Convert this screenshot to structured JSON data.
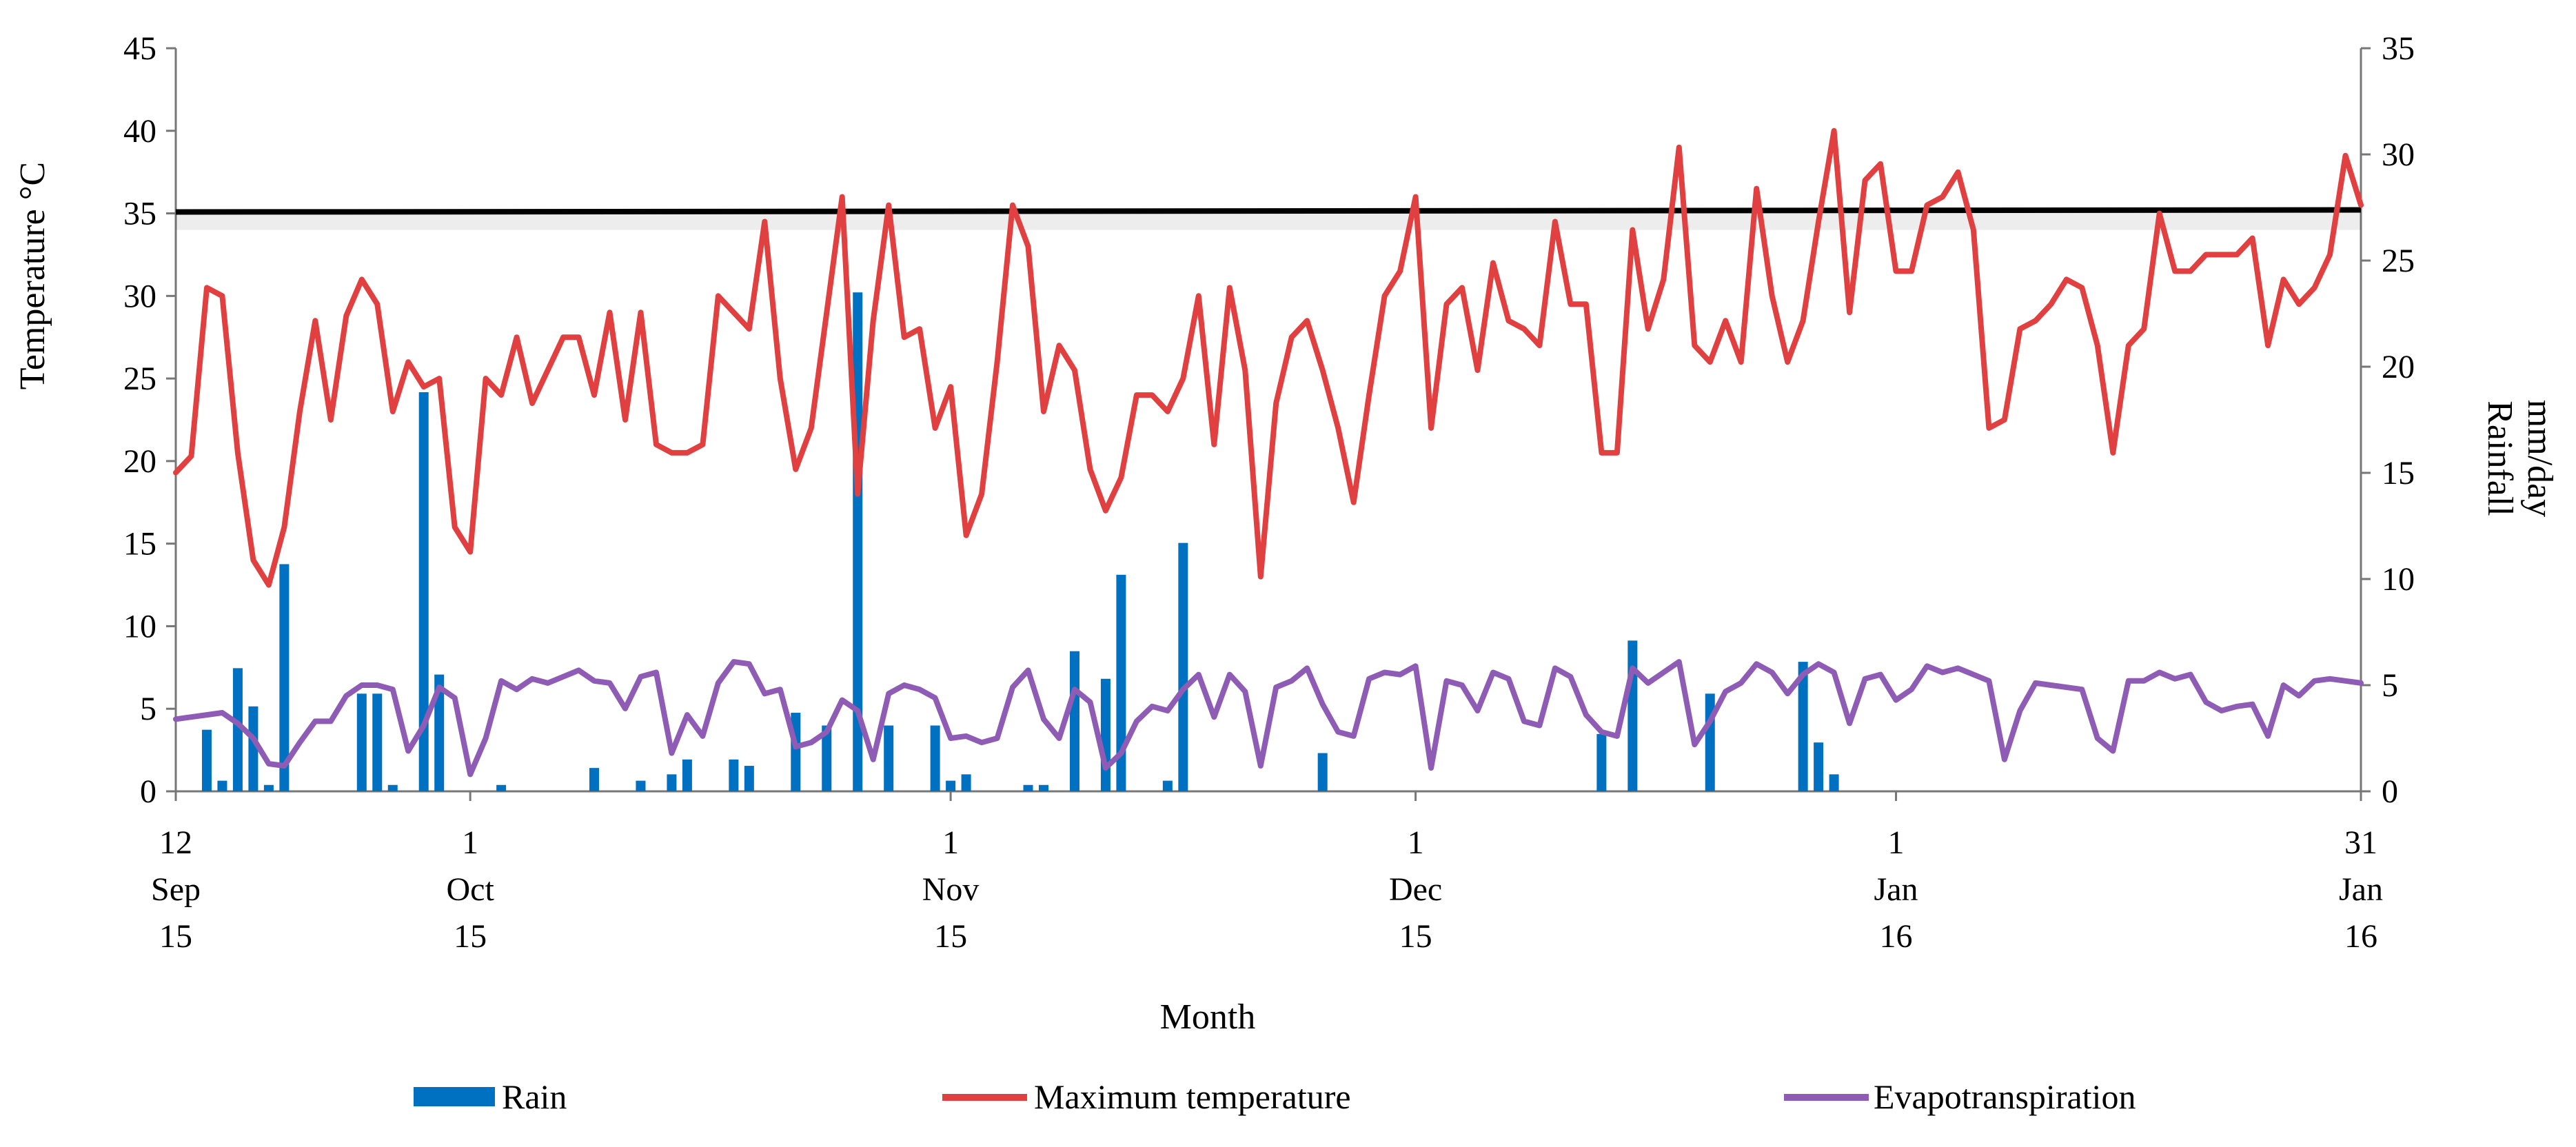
{
  "chart_data": {
    "type": "bar+line",
    "title": "",
    "xlabel": "Month",
    "ylabel_left": "Temperature °C",
    "ylabel_right": [
      "Rainfall",
      "mm/day"
    ],
    "ylim_left": [
      0,
      45
    ],
    "yticks_left": [
      0,
      5,
      10,
      15,
      20,
      25,
      30,
      35,
      40,
      45
    ],
    "ylim_right": [
      0,
      35
    ],
    "yticks_right": [
      0,
      5,
      10,
      15,
      20,
      25,
      30,
      35
    ],
    "x_start_day": 0,
    "x_end_day": 141,
    "x_ticks": [
      {
        "day": 0,
        "lines": [
          "12",
          "Sep",
          "15"
        ]
      },
      {
        "day": 19,
        "lines": [
          "1",
          "Oct",
          "15"
        ]
      },
      {
        "day": 50,
        "lines": [
          "1",
          "Nov",
          "15"
        ]
      },
      {
        "day": 80,
        "lines": [
          "1",
          "Dec",
          "15"
        ]
      },
      {
        "day": 111,
        "lines": [
          "1",
          "Jan",
          "16"
        ]
      },
      {
        "day": 141,
        "lines": [
          "31",
          "Jan",
          "16"
        ]
      }
    ],
    "threshold": {
      "value": 35,
      "color": "#000000"
    },
    "legend": {
      "position": "bottom",
      "entries": [
        {
          "label": "Rain",
          "color": "#0070C0",
          "kind": "bar"
        },
        {
          "label": "Maximum temperature",
          "color": "#E0403F",
          "kind": "line"
        },
        {
          "label": "Evapotranspiration",
          "color": "#8E5CB5",
          "kind": "line"
        }
      ]
    },
    "series": [
      {
        "name": "Maximum temperature",
        "axis": "left",
        "type": "line",
        "color": "#E0403F",
        "values": [
          19.3,
          20.3,
          30.5,
          30,
          20.5,
          14,
          12.5,
          16,
          23,
          28.5,
          22.5,
          28.8,
          31,
          29.5,
          23,
          26,
          24.5,
          25,
          16,
          14.5,
          25,
          24,
          27.5,
          23.5,
          25.5,
          27.5,
          27.5,
          24,
          29,
          22.5,
          29,
          21,
          20.5,
          20.5,
          21,
          30,
          29,
          28,
          34.5,
          25,
          19.5,
          22,
          29,
          36,
          18,
          28.5,
          35.5,
          27.5,
          28,
          22,
          24.5,
          15.5,
          18,
          26,
          35.5,
          33,
          23,
          27,
          25.5,
          19.5,
          17,
          19,
          24,
          24,
          23,
          25,
          30,
          21,
          30.5,
          25.5,
          13,
          23.5,
          27.5,
          28.5,
          25.5,
          22,
          17.5,
          24,
          30,
          31.5,
          36,
          22,
          29.5,
          30.5,
          25.5,
          32,
          28.5,
          28,
          27,
          34.5,
          29.5,
          29.5,
          20.5,
          20.5,
          34,
          28,
          31,
          39,
          27,
          26,
          28.5,
          26,
          36.5,
          30,
          26,
          28.5,
          34.5,
          40,
          29,
          37,
          38,
          31.5,
          31.5,
          35.5,
          36,
          37.5,
          34,
          22,
          22.5,
          28,
          28.5,
          29.5,
          31,
          30.5,
          27,
          20.5,
          27,
          28,
          35,
          31.5,
          31.5,
          32.5,
          32.5,
          32.5,
          33.5,
          27,
          31,
          29.5,
          30.5,
          32.5,
          38.5,
          35.5
        ]
      },
      {
        "name": "Evapotranspiration",
        "axis": "right",
        "type": "line",
        "color": "#8E5CB5",
        "values": [
          3.4,
          3.5,
          3.6,
          3.7,
          3.2,
          2.5,
          1.3,
          1.2,
          2.3,
          3.3,
          3.3,
          4.5,
          5,
          5,
          4.8,
          1.9,
          3.1,
          4.9,
          4.4,
          0.8,
          2.5,
          5.2,
          4.8,
          5.3,
          5.1,
          5.4,
          5.7,
          5.2,
          5.1,
          3.9,
          5.4,
          5.6,
          1.8,
          3.6,
          2.6,
          5.1,
          6.1,
          6,
          4.6,
          4.8,
          2.1,
          2.3,
          2.8,
          4.3,
          3.8,
          1.5,
          4.6,
          5,
          4.8,
          4.4,
          2.5,
          2.6,
          2.3,
          2.5,
          4.9,
          5.7,
          3.4,
          2.5,
          4.8,
          4.2,
          1.1,
          1.8,
          3.3,
          4,
          3.8,
          4.8,
          5.5,
          3.5,
          5.5,
          4.7,
          1.2,
          4.9,
          5.2,
          5.8,
          4.1,
          2.8,
          2.6,
          5.3,
          5.6,
          5.5,
          5.9,
          1.1,
          5.2,
          5,
          3.8,
          5.6,
          5.3,
          3.3,
          3.1,
          5.8,
          5.4,
          3.6,
          2.8,
          2.6,
          5.8,
          5.1,
          5.6,
          6.1,
          2.2,
          3.3,
          4.7,
          5.1,
          6,
          5.6,
          4.6,
          5.5,
          6,
          5.6,
          3.2,
          5.3,
          5.5,
          4.3,
          4.8,
          5.9,
          5.6,
          5.8,
          5.5,
          5.2,
          1.5,
          3.8,
          5.1,
          5,
          4.9,
          4.8,
          2.5,
          1.9,
          5.2,
          5.2,
          5.6,
          5.3,
          5.5,
          4.2,
          3.8,
          4,
          4.1,
          2.6,
          5,
          4.5,
          5.2,
          5.3,
          5.2,
          5.1
        ]
      },
      {
        "name": "Rain",
        "axis": "right",
        "type": "bar",
        "color": "#0070C0",
        "points": [
          [
            2,
            2.9
          ],
          [
            3,
            0.5
          ],
          [
            4,
            5.8
          ],
          [
            5,
            4
          ],
          [
            6,
            0.3
          ],
          [
            7,
            10.7
          ],
          [
            12,
            4.6
          ],
          [
            13,
            4.6
          ],
          [
            14,
            0.3
          ],
          [
            16,
            18.8
          ],
          [
            17,
            5.5
          ],
          [
            21,
            0.3
          ],
          [
            27,
            1.1
          ],
          [
            30,
            0.5
          ],
          [
            32,
            0.8
          ],
          [
            33,
            1.5
          ],
          [
            36,
            1.5
          ],
          [
            37,
            1.2
          ],
          [
            40,
            3.7
          ],
          [
            42,
            3.1
          ],
          [
            44,
            23.5
          ],
          [
            46,
            3.1
          ],
          [
            49,
            3.1
          ],
          [
            50,
            0.5
          ],
          [
            51,
            0.8
          ],
          [
            55,
            0.3
          ],
          [
            56,
            0.3
          ],
          [
            58,
            6.6
          ],
          [
            60,
            5.3
          ],
          [
            61,
            10.2
          ],
          [
            64,
            0.5
          ],
          [
            65,
            11.7
          ],
          [
            74,
            1.8
          ],
          [
            92,
            2.7
          ],
          [
            94,
            7.1
          ],
          [
            99,
            4.6
          ],
          [
            105,
            6.1
          ],
          [
            106,
            2.3
          ],
          [
            107,
            0.8
          ]
        ]
      }
    ]
  }
}
